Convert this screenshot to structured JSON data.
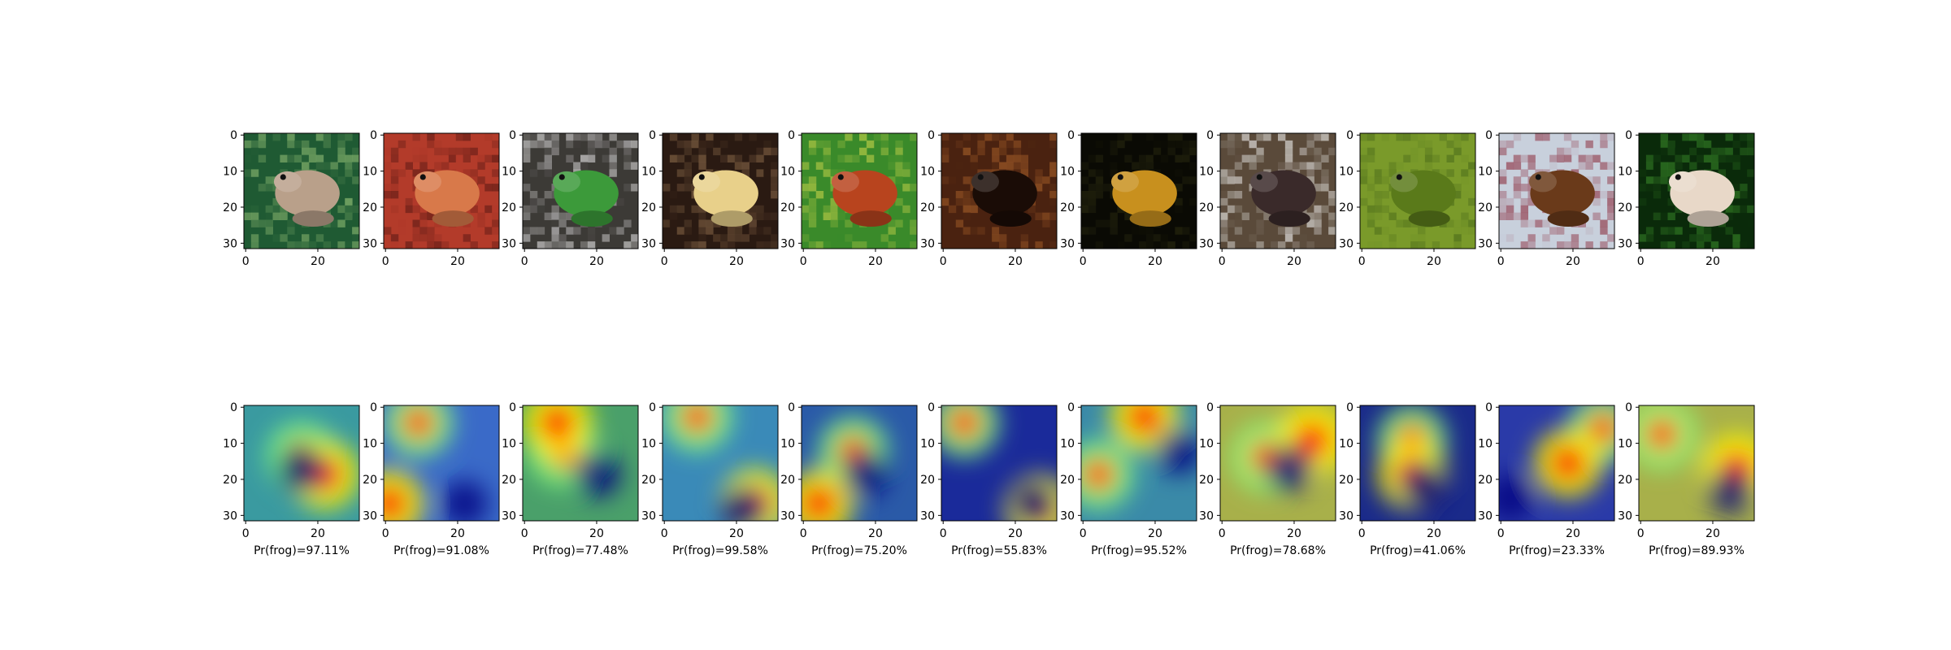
{
  "figure": {
    "x_ticks": [
      "0",
      "20"
    ],
    "y_ticks": [
      "0",
      "10",
      "20",
      "30"
    ],
    "captions": [
      "Pr(frog)=97.11%",
      "Pr(frog)=91.08%",
      "Pr(frog)=77.48%",
      "Pr(frog)=99.58%",
      "Pr(frog)=75.20%",
      "Pr(frog)=55.83%",
      "Pr(frog)=95.52%",
      "Pr(frog)=78.68%",
      "Pr(frog)=41.06%",
      "Pr(frog)=23.33%",
      "Pr(frog)=89.93%"
    ],
    "probabilities_percent": [
      97.11,
      91.08,
      77.48,
      99.58,
      75.2,
      55.83,
      95.52,
      78.68,
      41.06,
      23.33,
      89.93
    ],
    "images": [
      {
        "subject": "frog",
        "bg": "#1f5a33",
        "accent": "#9cc67a",
        "fg": "#b9a08a"
      },
      {
        "subject": "frog",
        "bg": "#b33b2a",
        "accent": "#5a1a14",
        "fg": "#d8794a"
      },
      {
        "subject": "frog",
        "bg": "#3c3a36",
        "accent": "#e6e6e6",
        "fg": "#3c9a3a"
      },
      {
        "subject": "frog",
        "bg": "#2a1a12",
        "accent": "#8a6a4a",
        "fg": "#e8d08a"
      },
      {
        "subject": "frog",
        "bg": "#3a8a2a",
        "accent": "#c9d24a",
        "fg": "#b8441e"
      },
      {
        "subject": "frog",
        "bg": "#4a2210",
        "accent": "#a8602a",
        "fg": "#1a0c06"
      },
      {
        "subject": "frog",
        "bg": "#0a0a04",
        "accent": "#2a2a10",
        "fg": "#c8901e"
      },
      {
        "subject": "frog",
        "bg": "#5a4a3a",
        "accent": "#f2f2f2",
        "fg": "#3a2a2a"
      },
      {
        "subject": "frog",
        "bg": "#7a9a2a",
        "accent": "#4a6a1a",
        "fg": "#5a7a1a"
      },
      {
        "subject": "frog",
        "bg": "#c8d0dc",
        "accent": "#8a2a3a",
        "fg": "#6a3a1a"
      },
      {
        "subject": "frog",
        "bg": "#0a2a0a",
        "accent": "#3a8a2a",
        "fg": "#e8d8c8"
      }
    ],
    "heatmaps": [
      {
        "hot": [
          [
            0.5,
            0.45,
            0.55
          ],
          [
            0.7,
            0.6,
            0.3
          ]
        ],
        "base": "#3a9aa0"
      },
      {
        "hot": [
          [
            0.3,
            0.15,
            0.45
          ],
          [
            0.05,
            0.85,
            0.5
          ]
        ],
        "base": "#3a6ac8"
      },
      {
        "hot": [
          [
            0.35,
            0.4,
            0.6
          ],
          [
            0.3,
            0.15,
            0.4
          ]
        ],
        "base": "#4aa06a"
      },
      {
        "hot": [
          [
            0.3,
            0.1,
            0.45
          ],
          [
            0.8,
            0.85,
            0.5
          ]
        ],
        "base": "#3a8ab8"
      },
      {
        "hot": [
          [
            0.45,
            0.4,
            0.55
          ],
          [
            0.15,
            0.85,
            0.35
          ]
        ],
        "base": "#2a5aa8"
      },
      {
        "hot": [
          [
            0.2,
            0.15,
            0.5
          ],
          [
            0.85,
            0.9,
            0.35
          ]
        ],
        "base": "#1a2a9a"
      },
      {
        "hot": [
          [
            0.15,
            0.6,
            0.5
          ],
          [
            0.55,
            0.1,
            0.3
          ]
        ],
        "base": "#3a8aa8"
      },
      {
        "hot": [
          [
            0.4,
            0.45,
            0.6
          ],
          [
            0.8,
            0.3,
            0.4
          ]
        ],
        "base": "#a8b04a"
      },
      {
        "hot": [
          [
            0.45,
            0.3,
            0.5
          ],
          [
            0.45,
            0.6,
            0.55
          ]
        ],
        "base": "#1a2a8a"
      },
      {
        "hot": [
          [
            0.9,
            0.2,
            0.45
          ],
          [
            0.6,
            0.5,
            0.25
          ]
        ],
        "base": "#2a3aa8"
      },
      {
        "hot": [
          [
            0.2,
            0.25,
            0.55
          ],
          [
            0.85,
            0.55,
            0.35
          ]
        ],
        "base": "#a8b04a"
      }
    ],
    "colors": {
      "axis": "#000000",
      "jet": [
        "#00007f",
        "#0000ff",
        "#007fff",
        "#00ffff",
        "#7fff7f",
        "#ffff00",
        "#ff7f00",
        "#ff0000",
        "#7f0000"
      ]
    }
  }
}
